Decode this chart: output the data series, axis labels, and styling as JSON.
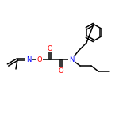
{
  "background_color": "#ffffff",
  "atom_colors": {
    "N": "#0000ff",
    "O": "#ff0000"
  },
  "bond_color": "#000000",
  "figsize": [
    1.5,
    1.5
  ],
  "dpi": 100,
  "lw": 1.1,
  "fs": 6.0
}
